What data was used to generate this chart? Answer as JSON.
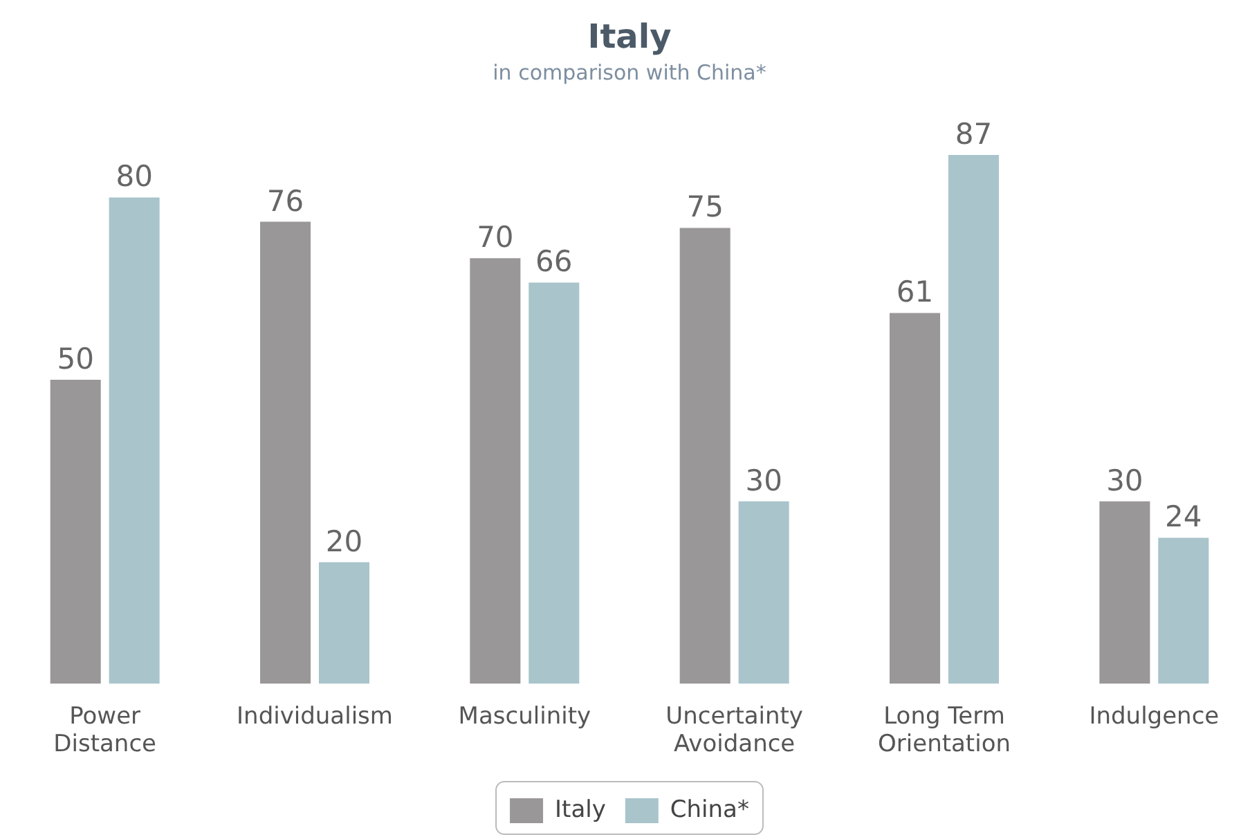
{
  "chart_data": {
    "type": "bar",
    "title": "Italy",
    "subtitle": "in comparison with China*",
    "categories": [
      "Power Distance",
      "Individualism",
      "Masculinity",
      "Uncertainty Avoidance",
      "Long Term Orientation",
      "Indulgence"
    ],
    "series": [
      {
        "name": "Italy",
        "color": "#9a9799",
        "values": [
          50,
          76,
          70,
          75,
          61,
          30
        ]
      },
      {
        "name": "China*",
        "color": "#a9c4cb",
        "values": [
          80,
          20,
          66,
          30,
          87,
          24
        ]
      }
    ],
    "tick_labels": "x",
    "grid": false,
    "data_labels": true,
    "legend": "bottom"
  }
}
